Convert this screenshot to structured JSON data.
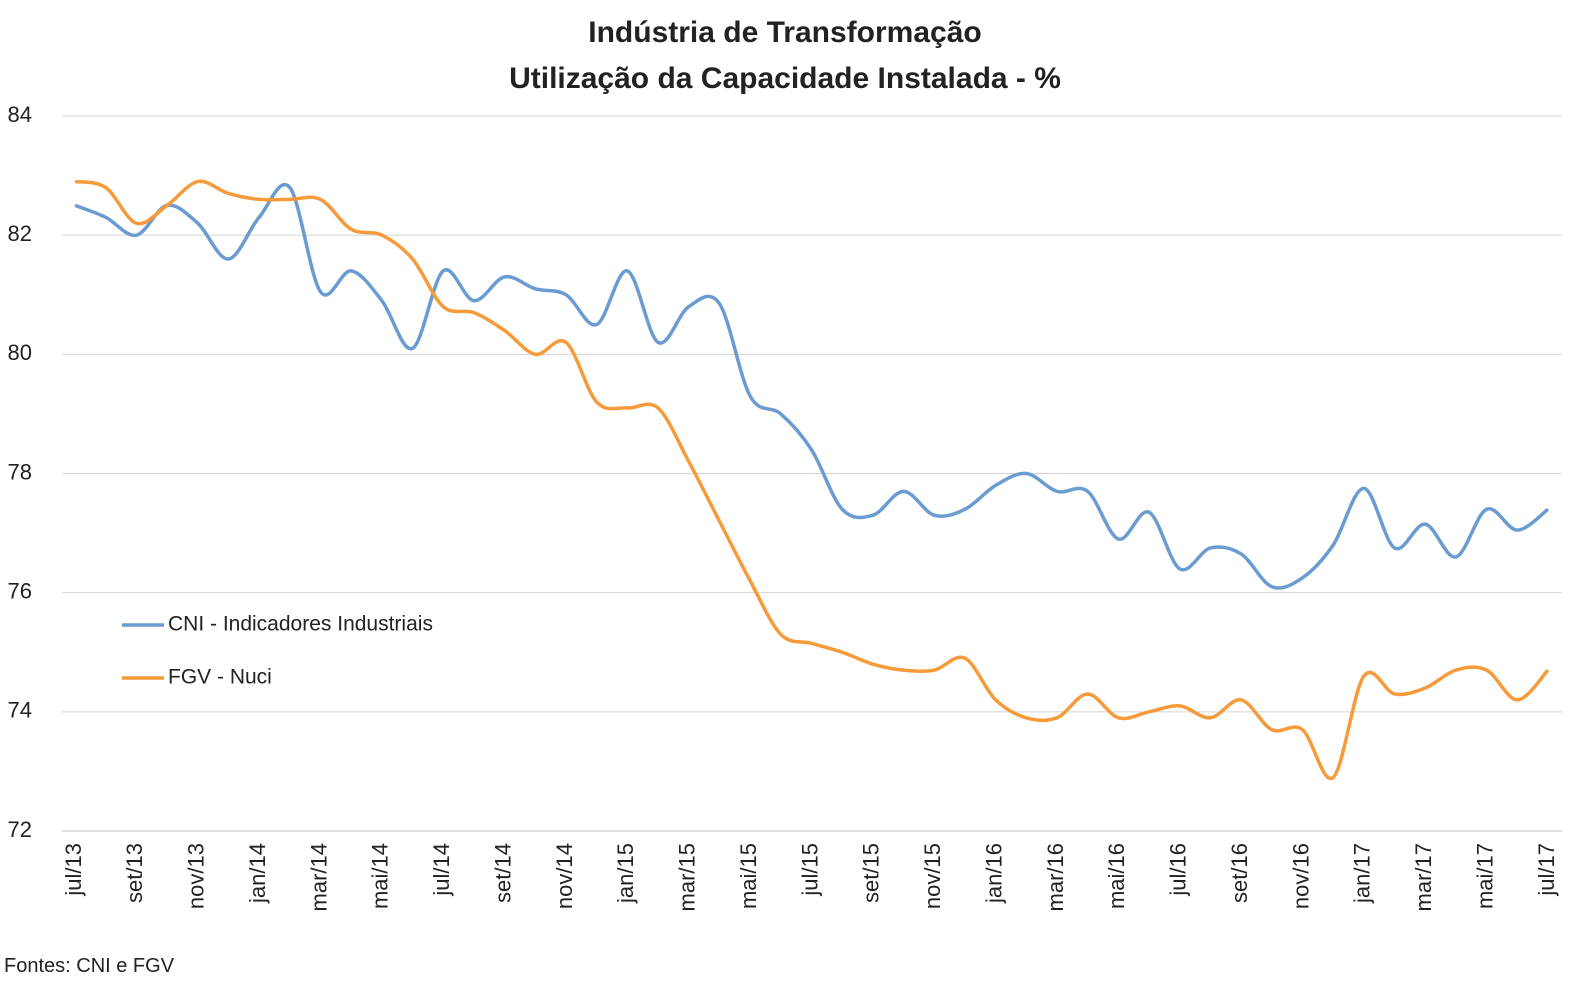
{
  "chart_data": {
    "type": "line",
    "title": [
      "Indústria de Transformação",
      "Utilização da Capacidade Instalada - %"
    ],
    "source": "Fontes: CNI e FGV",
    "categories": [
      "jul/13",
      null,
      "set/13",
      null,
      "nov/13",
      null,
      "jan/14",
      null,
      "mar/14",
      null,
      "mai/14",
      null,
      "jul/14",
      null,
      "set/14",
      null,
      "nov/14",
      null,
      "jan/15",
      null,
      "mar/15",
      null,
      "mai/15",
      null,
      "jul/15",
      null,
      "set/15",
      null,
      "nov/15",
      null,
      "jan/16",
      null,
      "mar/16",
      null,
      "mai/16",
      null,
      "jul/16",
      null,
      "set/16",
      null,
      "nov/16",
      null,
      "jan/17",
      null,
      "mar/17",
      null,
      "mai/17",
      null,
      "jul/17"
    ],
    "series": [
      {
        "name": "CNI - Indicadores Industriais",
        "color": "#6a9bd1",
        "values": [
          82.5,
          82.3,
          82.0,
          82.5,
          82.2,
          81.6,
          82.3,
          82.8,
          81.05,
          81.4,
          80.9,
          80.1,
          81.4,
          80.9,
          81.3,
          81.1,
          81.0,
          80.5,
          81.4,
          80.2,
          80.8,
          80.85,
          79.3,
          79.0,
          78.4,
          77.4,
          77.3,
          77.7,
          77.3,
          77.4,
          77.8,
          78.0,
          77.7,
          77.7,
          76.9,
          77.35,
          76.4,
          76.75,
          76.65,
          76.1,
          76.25,
          76.8,
          77.75,
          76.75,
          77.15,
          76.6,
          77.4,
          77.05,
          77.4
        ]
      },
      {
        "name": "FGV - Nuci",
        "color": "#f79a3a",
        "values": [
          82.9,
          82.8,
          82.2,
          82.5,
          82.9,
          82.7,
          82.6,
          82.6,
          82.6,
          82.1,
          82.0,
          81.6,
          80.8,
          80.7,
          80.4,
          80.0,
          80.2,
          79.2,
          79.1,
          79.1,
          78.2,
          77.2,
          76.2,
          75.3,
          75.15,
          75.0,
          74.8,
          74.7,
          74.7,
          74.9,
          74.2,
          73.9,
          73.9,
          74.3,
          73.9,
          74.0,
          74.1,
          73.9,
          74.2,
          73.7,
          73.7,
          72.9,
          74.6,
          74.3,
          74.4,
          74.7,
          74.7,
          74.2,
          74.7
        ]
      }
    ],
    "ylim": [
      72,
      84
    ],
    "yticks": [
      72,
      74,
      76,
      78,
      80,
      82,
      84
    ],
    "grid": true,
    "legend": "left"
  }
}
